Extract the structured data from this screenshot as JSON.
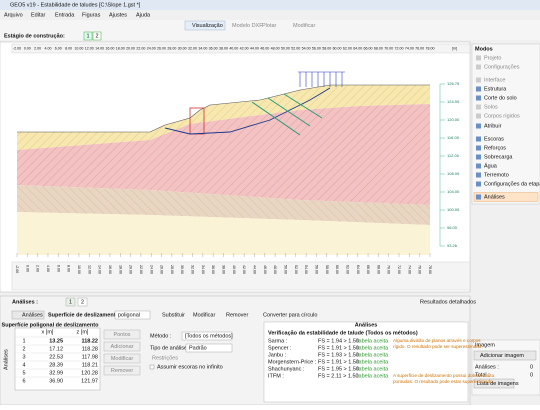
{
  "window": {
    "title": "GEO5 v19 - Estabilidade de taludes [C:\\Slope 1.gst *]"
  },
  "menu": [
    "Arquivo",
    "Editar",
    "Entrada",
    "Figuras",
    "Ajustes",
    "Ajuda"
  ],
  "toolbar": {
    "view": "Visualização",
    "dxf": "Modelo DXF",
    "plot": "Plotar",
    "modify": "Modificar"
  },
  "stage": {
    "label": "Estágio de construção:",
    "tabs": [
      "1",
      "2"
    ]
  },
  "ruler": {
    "x": [
      "-2.00",
      "0.00",
      "2.00",
      "4.00",
      "6.00",
      "8.00",
      "10.00",
      "12.00",
      "14.00",
      "16.00",
      "18.00",
      "20.00",
      "22.00",
      "24.00",
      "26.00",
      "28.00",
      "30.00",
      "32.00",
      "34.00",
      "36.00",
      "38.00",
      "40.00",
      "42.00",
      "44.00",
      "46.00",
      "48.00",
      "50.00",
      "52.00",
      "54.00",
      "56.00",
      "58.00",
      "60.00",
      "62.00",
      "64.00",
      "66.00",
      "68.00",
      "70.00",
      "72.00",
      "74.00",
      "76.00",
      "78.00"
    ],
    "unit": "[m]",
    "z": [
      "126.75",
      "124.00",
      "120.00",
      "116.00",
      "112.00",
      "108.00",
      "104.00",
      "100.00",
      "96.00",
      "93.26"
    ]
  },
  "modes": {
    "title": "Modos",
    "items": [
      "Projeto",
      "Configurações",
      "Interface",
      "Estrutura",
      "Corte do solo",
      "Solos",
      "Corpos rígidos",
      "Atribuir",
      "Escoras",
      "Reforços",
      "Sobrecarga",
      "Água",
      "Terremoto",
      "Configurações da etapa",
      "Análises"
    ]
  },
  "image_panel": {
    "title": "Imagem",
    "add": "Adicionar imagem",
    "analyses_label": "Análises :",
    "analyses_value": "0",
    "total_label": "Total :",
    "total_value": "0",
    "list": "Lista de imagens"
  },
  "analysis": {
    "header": "Análises :",
    "tabs": [
      "1",
      "2"
    ],
    "detailed": "Resultados detalhados",
    "side_tab": "Análises",
    "run": "Análises",
    "surface_label": "Superfície de deslizamento :",
    "surface_value": "poligonal",
    "replace": "Substituir",
    "modify": "Modificar",
    "remove": "Remover",
    "convert": "Converter para círculo",
    "table": {
      "title": "Superfície poligonal de deslizamento",
      "headers": [
        "x [m]",
        "z [m]"
      ],
      "rows": [
        [
          "1",
          "13.25",
          "118.22"
        ],
        [
          "2",
          "17.12",
          "118.28"
        ],
        [
          "3",
          "22.53",
          "117.98"
        ],
        [
          "4",
          "28.39",
          "118.21"
        ],
        [
          "5",
          "32.99",
          "120.28"
        ],
        [
          "6",
          "36.90",
          "121.97"
        ]
      ]
    },
    "point_buttons": [
      "Pontos",
      "Adicionar",
      "Modificar",
      "Remover"
    ],
    "method_label": "Método :",
    "method_value": "[Todos os métodos]",
    "type_label": "Tipo de análise :",
    "type_value": "Padrão",
    "restrictions": "Restrições",
    "infinite": "Assumir escoras no infinito",
    "results": {
      "title": "Análises",
      "heading": "Verificação da estabilidade de talude (Todos os métodos)",
      "lines": [
        {
          "method": "Sarma :",
          "fs": "FS = 1.94 > 1.50",
          "status": "tabela aceita",
          "note": "Alguma divisão de planos através e corpos rígido. O resultado pode ser superestimado."
        },
        {
          "method": "Spencer :",
          "fs": "FS = 1.91 > 1.50",
          "status": "tabela aceita"
        },
        {
          "method": "Janbu :",
          "fs": "FS = 1.93 > 1.50",
          "status": "tabela aceita"
        },
        {
          "method": "Morgenstern-Price :",
          "fs": "FS = 1.91 > 1.50",
          "status": "tabela aceita"
        },
        {
          "method": "Shachunyanc :",
          "fs": "FS = 1.95 > 1.50",
          "status": "tabela aceita"
        },
        {
          "method": "ITFM :",
          "fs": "FS = 2.11 > 1.50",
          "status": "tabela aceita",
          "note": "A superfície de deslizamento possui dobras muito pontudas. O resultado pode estar superestimado."
        }
      ]
    }
  }
}
